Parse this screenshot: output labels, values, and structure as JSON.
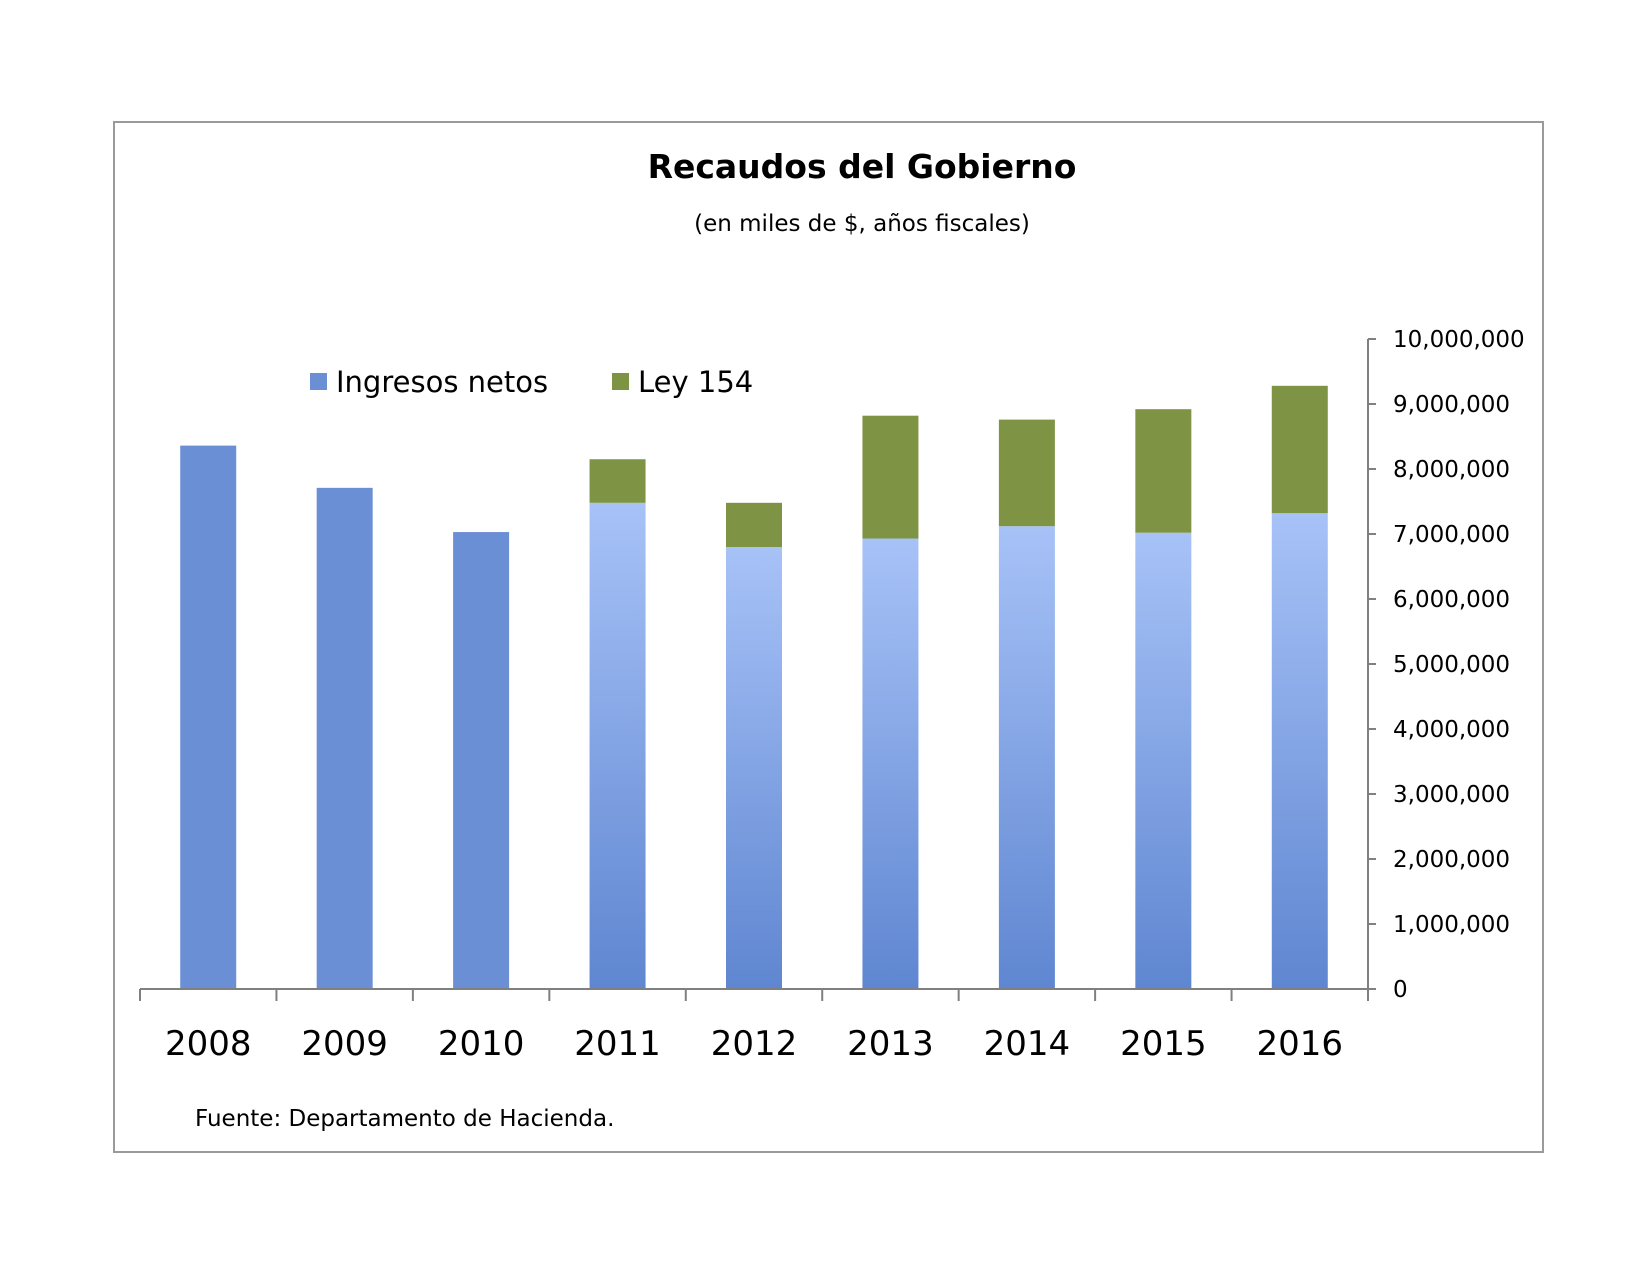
{
  "chart_data": {
    "type": "bar",
    "stacked": true,
    "title": "Recaudos del Gobierno",
    "subtitle": "(en miles de $, años fiscales)",
    "categories": [
      "2008",
      "2009",
      "2010",
      "2011",
      "2012",
      "2013",
      "2014",
      "2015",
      "2016"
    ],
    "series": [
      {
        "name": "Ingresos netos",
        "values": [
          8360000,
          7710000,
          7030000,
          7480000,
          6800000,
          6930000,
          7120000,
          7020000,
          7320000
        ]
      },
      {
        "name": "Ley 154",
        "values": [
          0,
          0,
          0,
          670000,
          680000,
          1890000,
          1640000,
          1900000,
          1960000
        ]
      }
    ],
    "ylim": [
      0,
      10000000
    ],
    "yticks": [
      "0",
      "1,000,000",
      "2,000,000",
      "3,000,000",
      "4,000,000",
      "5,000,000",
      "6,000,000",
      "7,000,000",
      "8,000,000",
      "9,000,000",
      "10,000,000"
    ],
    "yaxis_side": "right",
    "grid": false,
    "legend_position": "top-left",
    "source": "Fuente: Departamento de Hacienda.",
    "colors": {
      "ingresos_solid": "#6b8fd4",
      "ingresos_gradient_top": "#a7c2f7",
      "ingresos_gradient_bottom": "#5f86d1",
      "ley154": "#7f9344",
      "axis": "#808080"
    }
  }
}
